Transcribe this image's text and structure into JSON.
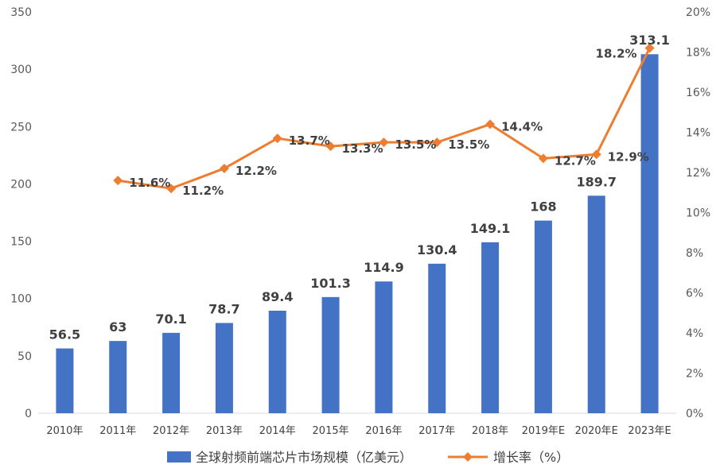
{
  "chart_data": {
    "type": "bar",
    "categories": [
      "2010年",
      "2011年",
      "2012年",
      "2013年",
      "2014年",
      "2015年",
      "2016年",
      "2017年",
      "2018年",
      "2019年E",
      "2020年E",
      "2023年E"
    ],
    "series": [
      {
        "name": "全球射频前端芯片市场规模（亿美元）",
        "type": "bar",
        "axis": "left",
        "values": [
          56.5,
          63,
          70.1,
          78.7,
          89.4,
          101.3,
          114.9,
          130.4,
          149.1,
          168,
          189.7,
          313.1
        ],
        "labels": [
          "56.5",
          "63",
          "70.1",
          "78.7",
          "89.4",
          "101.3",
          "114.9",
          "130.4",
          "149.1",
          "168",
          "189.7",
          "313.1"
        ]
      },
      {
        "name": "增长率（%）",
        "type": "line",
        "axis": "right",
        "values": [
          null,
          11.6,
          11.2,
          12.2,
          13.7,
          13.3,
          13.5,
          13.5,
          14.4,
          12.7,
          12.9,
          18.2
        ],
        "labels": [
          "",
          "11.6%",
          "11.2%",
          "12.2%",
          "13.7%",
          "13.3%",
          "13.5%",
          "13.5%",
          "14.4%",
          "12.7%",
          "12.9%",
          "18.2%"
        ]
      }
    ],
    "y_left": {
      "ylim": [
        0,
        350
      ],
      "ticks": [
        "0",
        "50",
        "100",
        "150",
        "200",
        "250",
        "300",
        "350"
      ]
    },
    "y_right": {
      "ylim": [
        0,
        20
      ],
      "ticks": [
        "0%",
        "2%",
        "4%",
        "6%",
        "8%",
        "10%",
        "12%",
        "14%",
        "16%",
        "18%",
        "20%"
      ]
    },
    "grid": false,
    "legend_position": "bottom",
    "colors": {
      "bar": "#4472C4",
      "line": "#ED7D31",
      "text": "#404040",
      "axis": "#D9D9D9"
    }
  }
}
